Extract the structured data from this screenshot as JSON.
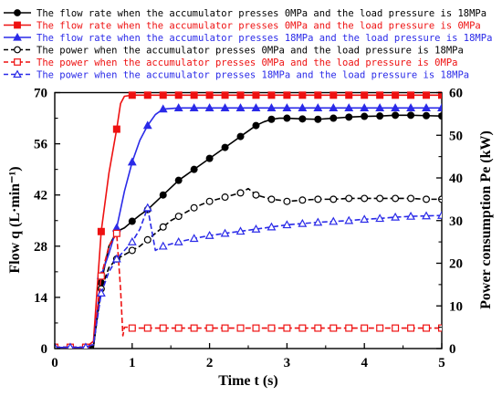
{
  "chart_data": {
    "type": "line",
    "x_axis": {
      "label": "Time t (s)",
      "range": [
        0,
        5
      ],
      "ticks": [
        "0",
        "1",
        "2",
        "3",
        "4",
        "5"
      ]
    },
    "y_axis_left": {
      "label": "Flow q (L·min⁻¹)",
      "range": [
        0,
        70
      ],
      "ticks": [
        "0",
        "14",
        "28",
        "42",
        "56",
        "70"
      ]
    },
    "y_axis_right": {
      "label": "Power consumption Pe (kW)",
      "range": [
        0,
        60
      ],
      "ticks": [
        "0",
        "10",
        "20",
        "30",
        "40",
        "50",
        "60"
      ]
    },
    "grid": false,
    "legend_position": "top",
    "series": [
      {
        "name": "The flow rate when the accumulator presses 0MPa and the load pressure is 18MPa",
        "axis": "left",
        "color": "#000000",
        "marker": "filled-circle",
        "line": "solid",
        "x": [
          0,
          0.1,
          0.2,
          0.3,
          0.4,
          0.5,
          0.6,
          0.7,
          0.8,
          0.9,
          1.0,
          1.1,
          1.2,
          1.3,
          1.4,
          1.5,
          1.6,
          1.7,
          1.8,
          1.9,
          2.0,
          2.1,
          2.2,
          2.3,
          2.4,
          2.5,
          2.6,
          2.7,
          2.8,
          2.9,
          3.0,
          3.2,
          3.4,
          3.6,
          3.8,
          4.0,
          4.2,
          4.4,
          4.6,
          4.8,
          5.0
        ],
        "y": [
          0.3,
          0.3,
          0.3,
          0.3,
          0.3,
          0.4,
          18,
          28,
          32,
          33,
          34.8,
          36.5,
          38,
          40,
          42,
          44,
          46,
          47.5,
          49,
          50.5,
          52,
          53.5,
          55,
          56.5,
          58,
          59.5,
          61,
          62,
          62.7,
          63,
          63,
          62.8,
          62.7,
          63,
          63.3,
          63.5,
          63.6,
          63.8,
          63.8,
          63.7,
          63.6
        ]
      },
      {
        "name": "The flow rate when the accumulator presses 0MPa and the load pressure is 0MPa",
        "axis": "left",
        "color": "#ee1111",
        "marker": "filled-square",
        "line": "solid",
        "x": [
          0,
          0.1,
          0.2,
          0.3,
          0.4,
          0.5,
          0.6,
          0.7,
          0.8,
          0.85,
          0.9,
          1.0,
          1.2,
          1.4,
          1.6,
          1.8,
          2.0,
          2.2,
          2.4,
          2.6,
          2.8,
          3.0,
          3.2,
          3.4,
          3.6,
          3.8,
          4.0,
          4.2,
          4.4,
          4.6,
          4.8,
          5.0
        ],
        "y": [
          0.3,
          0.3,
          0.3,
          0.3,
          0.3,
          2,
          32,
          48,
          60,
          67,
          69,
          69.3,
          69.3,
          69.3,
          69.3,
          69.3,
          69.3,
          69.3,
          69.3,
          69.3,
          69.3,
          69.3,
          69.3,
          69.3,
          69.3,
          69.3,
          69.3,
          69.3,
          69.3,
          69.3,
          69.3,
          69.3
        ]
      },
      {
        "name": "The flow rate when the accumulator presses 18MPa and the load pressure is 18MPa",
        "axis": "left",
        "color": "#2a2ae8",
        "marker": "filled-triangle",
        "line": "solid",
        "x": [
          0,
          0.1,
          0.2,
          0.3,
          0.4,
          0.5,
          0.6,
          0.7,
          0.8,
          0.9,
          1.0,
          1.1,
          1.2,
          1.3,
          1.4,
          1.6,
          1.8,
          2.0,
          2.2,
          2.4,
          2.6,
          2.8,
          3.0,
          3.2,
          3.4,
          3.6,
          3.8,
          4.0,
          4.2,
          4.4,
          4.6,
          4.8,
          5.0
        ],
        "y": [
          0.3,
          0.3,
          0.3,
          0.3,
          0.3,
          1,
          20,
          26,
          33,
          43,
          51,
          57,
          61,
          64,
          65.5,
          65.8,
          65.8,
          65.8,
          65.8,
          65.8,
          65.8,
          65.8,
          65.8,
          65.8,
          65.8,
          65.8,
          65.8,
          65.8,
          65.8,
          65.8,
          65.8,
          65.8,
          65.8
        ]
      },
      {
        "name": "The power when the accumulator presses 0MPa and the load pressure is 18MPa",
        "axis": "right",
        "color": "#000000",
        "marker": "open-circle",
        "line": "dashed",
        "x": [
          0,
          0.1,
          0.2,
          0.3,
          0.4,
          0.5,
          0.6,
          0.7,
          0.8,
          0.9,
          1.0,
          1.1,
          1.2,
          1.3,
          1.4,
          1.5,
          1.6,
          1.7,
          1.8,
          1.9,
          2.0,
          2.1,
          2.2,
          2.3,
          2.4,
          2.5,
          2.6,
          2.7,
          2.8,
          2.9,
          3.0,
          3.2,
          3.4,
          3.6,
          3.8,
          4.0,
          4.2,
          4.4,
          4.6,
          4.8,
          5.0
        ],
        "y": [
          0.3,
          0.3,
          0.3,
          0.3,
          0.3,
          0.5,
          14,
          19,
          21,
          22,
          23,
          24,
          25.5,
          27,
          28.5,
          30,
          31,
          32,
          33,
          33.8,
          34.5,
          35,
          35.5,
          36,
          36.5,
          37.5,
          36,
          35.5,
          35,
          34.8,
          34.5,
          34.8,
          35,
          35,
          35.2,
          35.2,
          35.2,
          35.2,
          35.2,
          35,
          35
        ]
      },
      {
        "name": "The power when the accumulator presses 0MPa and the load pressure is 0MPa",
        "axis": "right",
        "color": "#ee1111",
        "marker": "open-square",
        "line": "dashed",
        "x": [
          0,
          0.1,
          0.2,
          0.3,
          0.4,
          0.5,
          0.6,
          0.7,
          0.8,
          0.85,
          0.88,
          0.9,
          0.95,
          1.0,
          1.2,
          1.4,
          1.6,
          1.8,
          2.0,
          2.2,
          2.4,
          2.6,
          2.8,
          3.0,
          3.2,
          3.4,
          3.6,
          3.8,
          4.0,
          4.2,
          4.4,
          4.6,
          4.8,
          5.0
        ],
        "y": [
          0.3,
          0.3,
          0.3,
          0.3,
          0.3,
          1,
          17,
          24,
          27,
          14,
          3,
          5,
          5,
          4.8,
          4.8,
          4.8,
          4.8,
          4.8,
          4.8,
          4.8,
          4.8,
          4.8,
          4.8,
          4.8,
          4.8,
          4.8,
          4.8,
          4.8,
          4.8,
          4.8,
          4.8,
          4.8,
          4.8,
          4.8
        ]
      },
      {
        "name": "The power when the accumulator presses 18MPa and the load pressure is 18MPa",
        "axis": "right",
        "color": "#2a2ae8",
        "marker": "open-triangle",
        "line": "dashed",
        "x": [
          0,
          0.1,
          0.2,
          0.3,
          0.4,
          0.5,
          0.6,
          0.7,
          0.8,
          0.9,
          1.0,
          1.1,
          1.2,
          1.25,
          1.3,
          1.4,
          1.6,
          1.8,
          2.0,
          2.2,
          2.4,
          2.6,
          2.8,
          3.0,
          3.2,
          3.4,
          3.6,
          3.8,
          4.0,
          4.2,
          4.4,
          4.6,
          4.8,
          5.0
        ],
        "y": [
          0.3,
          0.3,
          0.3,
          0.3,
          0.3,
          1,
          13,
          18,
          21,
          23,
          25,
          28,
          33,
          28,
          23,
          24,
          25,
          25.8,
          26.5,
          27,
          27.5,
          28,
          28.5,
          29,
          29.3,
          29.6,
          29.8,
          30,
          30.3,
          30.5,
          30.8,
          31,
          31.1,
          31.2
        ]
      }
    ]
  }
}
